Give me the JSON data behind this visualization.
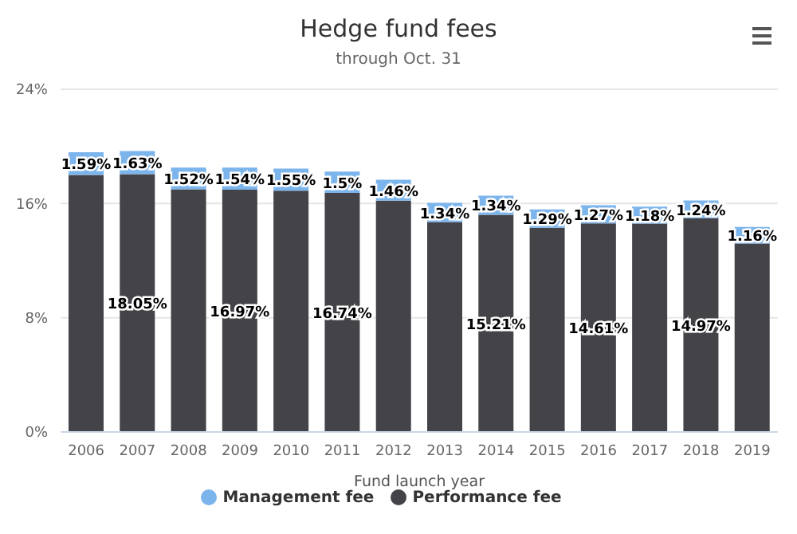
{
  "chart_data": {
    "type": "bar",
    "title": "Hedge fund fees",
    "subtitle": "through Oct. 31",
    "xlabel": "Fund launch year",
    "categories": [
      "2006",
      "2007",
      "2008",
      "2009",
      "2010",
      "2011",
      "2012",
      "2013",
      "2014",
      "2015",
      "2016",
      "2017",
      "2018",
      "2019"
    ],
    "stacked": true,
    "series": [
      {
        "name": "Performance fee",
        "color": "#434348",
        "values": [
          18.0,
          18.05,
          17.0,
          16.97,
          16.9,
          16.74,
          16.2,
          14.7,
          15.21,
          14.3,
          14.61,
          14.6,
          14.97,
          13.2
        ],
        "value_labels": [
          null,
          "18.05%",
          null,
          "16.97%",
          null,
          "16.74%",
          null,
          null,
          "15.21%",
          null,
          "14.61%",
          null,
          "14.97%",
          null
        ]
      },
      {
        "name": "Management fee",
        "color": "#7cb5ec",
        "values": [
          1.59,
          1.63,
          1.52,
          1.54,
          1.55,
          1.5,
          1.46,
          1.34,
          1.34,
          1.29,
          1.27,
          1.18,
          1.24,
          1.16
        ],
        "value_labels": [
          "1.59%",
          "1.63%",
          "1.52%",
          "1.54%",
          "1.55%",
          "1.5%",
          "1.46%",
          "1.34%",
          "1.34%",
          "1.29%",
          "1.27%",
          "1.18%",
          "1.24%",
          "1.16%"
        ]
      }
    ],
    "ylim": [
      0,
      24
    ],
    "yticks": [
      {
        "value": 0,
        "label": "0%"
      },
      {
        "value": 8,
        "label": "8%"
      },
      {
        "value": 16,
        "label": "16%"
      },
      {
        "value": 24,
        "label": "24%"
      }
    ],
    "grid": "y",
    "legend": "bottom"
  }
}
